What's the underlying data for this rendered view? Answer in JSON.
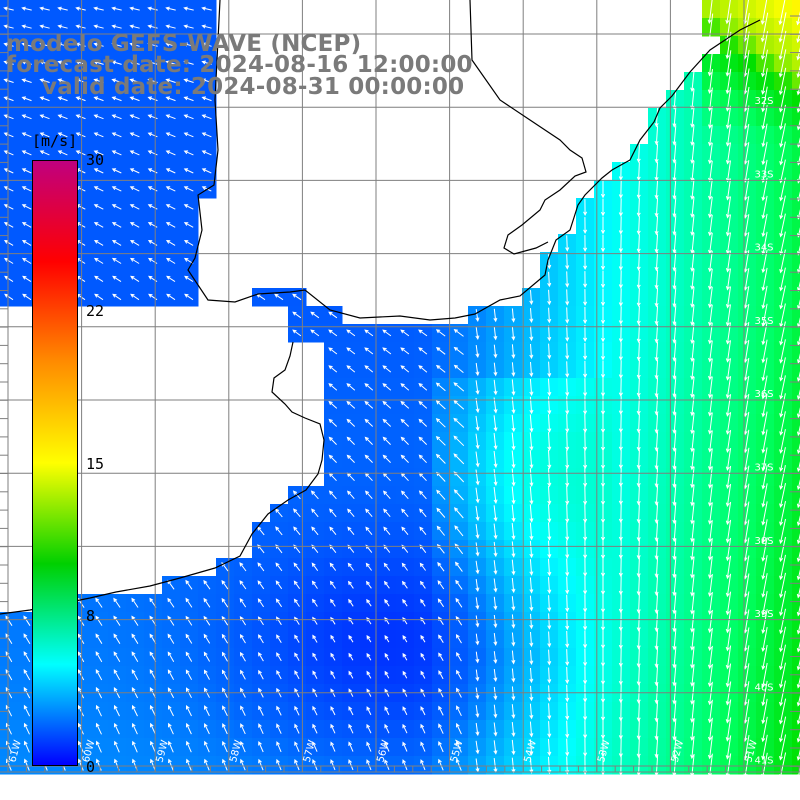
{
  "title": {
    "line1": "modelo GEFS-WAVE (NCEP)",
    "line2": "forecast date: 2024-08-16 12:00:00",
    "line3": "valid date: 2024-08-31 00:00:00"
  },
  "colorbar": {
    "unit": "[m/s]",
    "ticks": [
      "30",
      "22",
      "15",
      "8",
      "0"
    ],
    "colors": [
      "#c0007f",
      "#ff0000",
      "#ff8c00",
      "#ffff00",
      "#00d000",
      "#00ffff",
      "#0000ff"
    ]
  },
  "map": {
    "lat_labels": [
      "32S",
      "33S",
      "34S",
      "35S",
      "36S",
      "37S",
      "38S",
      "39S",
      "40S",
      "41S"
    ],
    "lon_labels": [
      "61W",
      "60W",
      "59W",
      "58W",
      "57W",
      "56W",
      "55W",
      "54W",
      "53W",
      "52W",
      "51W"
    ],
    "colors": {
      "land": "#ffffff",
      "grid": "#7f7f7f",
      "coast": "#000000",
      "arrows": "#ffffff"
    }
  }
}
